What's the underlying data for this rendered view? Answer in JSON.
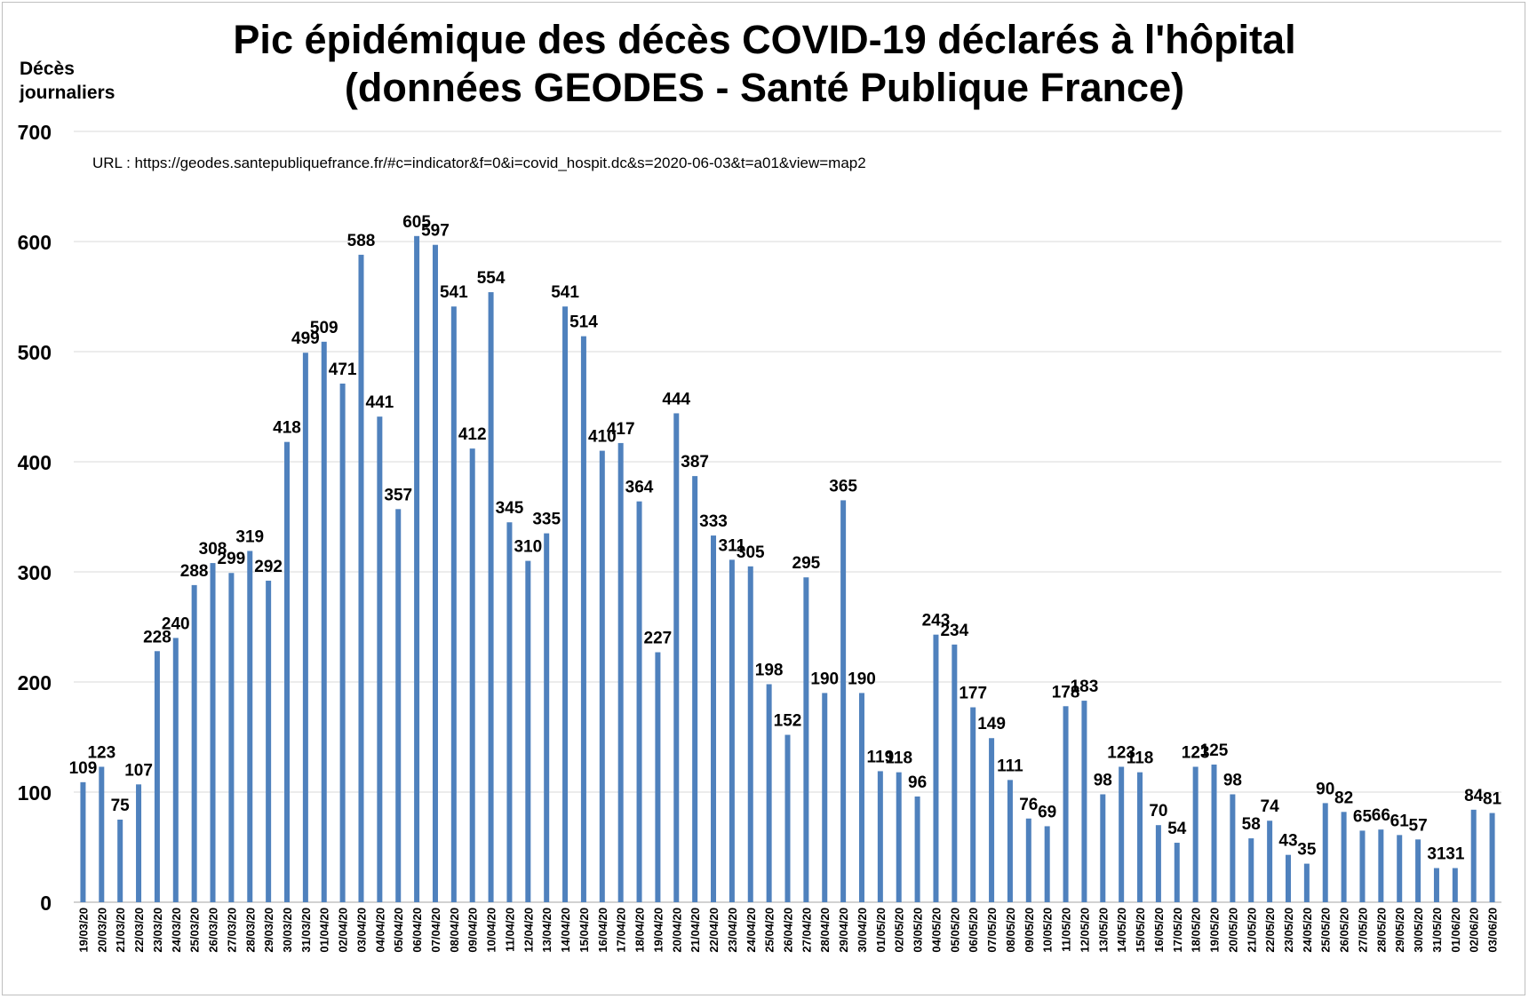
{
  "chart_data": {
    "type": "bar",
    "title_line1": "Pic épidémique des décès COVID-19 déclarés à l'hôpital",
    "title_line2": "(données GEODES - Santé Publique France)",
    "ylabel_line1": "Décès",
    "ylabel_line2": "journaliers",
    "url_text": "URL : https://geodes.santepubliquefrance.fr/#c=indicator&f=0&i=covid_hospit.dc&s=2020-06-03&t=a01&view=map2",
    "ylim": [
      0,
      700
    ],
    "yticks": [
      0,
      100,
      200,
      300,
      400,
      500,
      600,
      700
    ],
    "grid": true,
    "bar_color": "#4f81bd",
    "grid_color": "#d9d9d9",
    "categories": [
      "19/03/20",
      "20/03/20",
      "21/03/20",
      "22/03/20",
      "23/03/20",
      "24/03/20",
      "25/03/20",
      "26/03/20",
      "27/03/20",
      "28/03/20",
      "29/03/20",
      "30/03/20",
      "31/03/20",
      "01/04/20",
      "02/04/20",
      "03/04/20",
      "04/04/20",
      "05/04/20",
      "06/04/20",
      "07/04/20",
      "08/04/20",
      "09/04/20",
      "10/04/20",
      "11/04/20",
      "12/04/20",
      "13/04/20",
      "14/04/20",
      "15/04/20",
      "16/04/20",
      "17/04/20",
      "18/04/20",
      "19/04/20",
      "20/04/20",
      "21/04/20",
      "22/04/20",
      "23/04/20",
      "24/04/20",
      "25/04/20",
      "26/04/20",
      "27/04/20",
      "28/04/20",
      "29/04/20",
      "30/04/20",
      "01/05/20",
      "02/05/20",
      "03/05/20",
      "04/05/20",
      "05/05/20",
      "06/05/20",
      "07/05/20",
      "08/05/20",
      "09/05/20",
      "10/05/20",
      "11/05/20",
      "12/05/20",
      "13/05/20",
      "14/05/20",
      "15/05/20",
      "16/05/20",
      "17/05/20",
      "18/05/20",
      "19/05/20",
      "20/05/20",
      "21/05/20",
      "22/05/20",
      "23/05/20",
      "24/05/20",
      "25/05/20",
      "26/05/20",
      "27/05/20",
      "28/05/20",
      "29/05/20",
      "30/05/20",
      "31/05/20",
      "01/06/20",
      "02/06/20",
      "03/06/20"
    ],
    "values": [
      109,
      123,
      75,
      107,
      228,
      240,
      288,
      308,
      299,
      319,
      292,
      418,
      499,
      509,
      471,
      588,
      441,
      357,
      605,
      597,
      541,
      412,
      554,
      345,
      310,
      335,
      541,
      514,
      410,
      417,
      364,
      227,
      444,
      387,
      333,
      311,
      305,
      198,
      152,
      295,
      190,
      365,
      190,
      119,
      118,
      96,
      243,
      234,
      177,
      149,
      111,
      76,
      69,
      178,
      183,
      98,
      123,
      118,
      70,
      54,
      123,
      125,
      98,
      58,
      74,
      43,
      35,
      90,
      82,
      65,
      66,
      61,
      57,
      31,
      31,
      84,
      81
    ]
  }
}
